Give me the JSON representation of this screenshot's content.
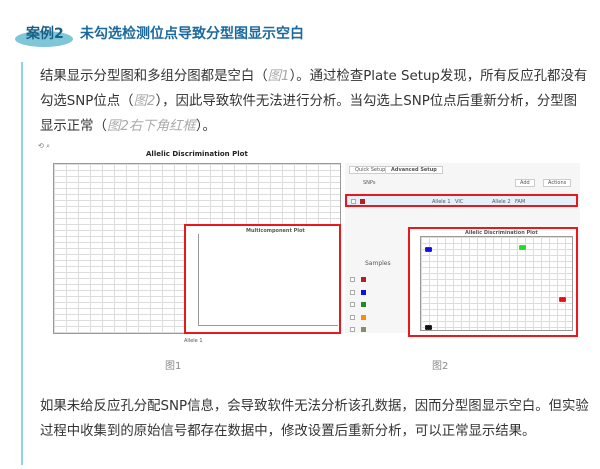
{
  "heading": {
    "badge": "案例2",
    "title": "未勾选检测位点导致分型图显示空白"
  },
  "para1": {
    "a": "结果显示分型图和多组分图都是空白（",
    "cite1": "图1",
    "b": "）。通过检查Plate Setup发现，所有反应孔都没有勾选SNP位点（",
    "cite2": "图2",
    "c": "），因此导致软件无法进行分析。当勾选上SNP位点后重新分析，分型图显示正常（",
    "cite3": "图2右下角红框",
    "d": "）。"
  },
  "fig1": {
    "caption": "图1",
    "plot_title": "Allelic Discrimination Plot",
    "xlabel": "Allele 1",
    "inset_title": "Multicomponent Plot"
  },
  "fig2": {
    "caption": "图2",
    "tabs": [
      "Quick Setup",
      "Advanced Setup"
    ],
    "snps_label": "SNPs",
    "add_label": "Add",
    "actions_label": "Actions",
    "samples_label": "Samples",
    "row": {
      "allele1": "Allele 1",
      "dye1": "VIC",
      "allele2": "Allele 2",
      "dye2": "FAM"
    },
    "plot_title": "Allelic Discrimination Plot",
    "highlight_color": "#e8191c",
    "samples_colors": [
      "#b22222",
      "#1010e0",
      "#228b22",
      "#ff8c00",
      "#8b8b6b"
    ]
  },
  "para2": "如果未给反应孔分配SNP信息，会导致软件无法分析该孔数据，因而分型图显示空白。但实验过程中收集到的原始信号都存在数据中，修改设置后重新分析，可以正常显示结果。"
}
